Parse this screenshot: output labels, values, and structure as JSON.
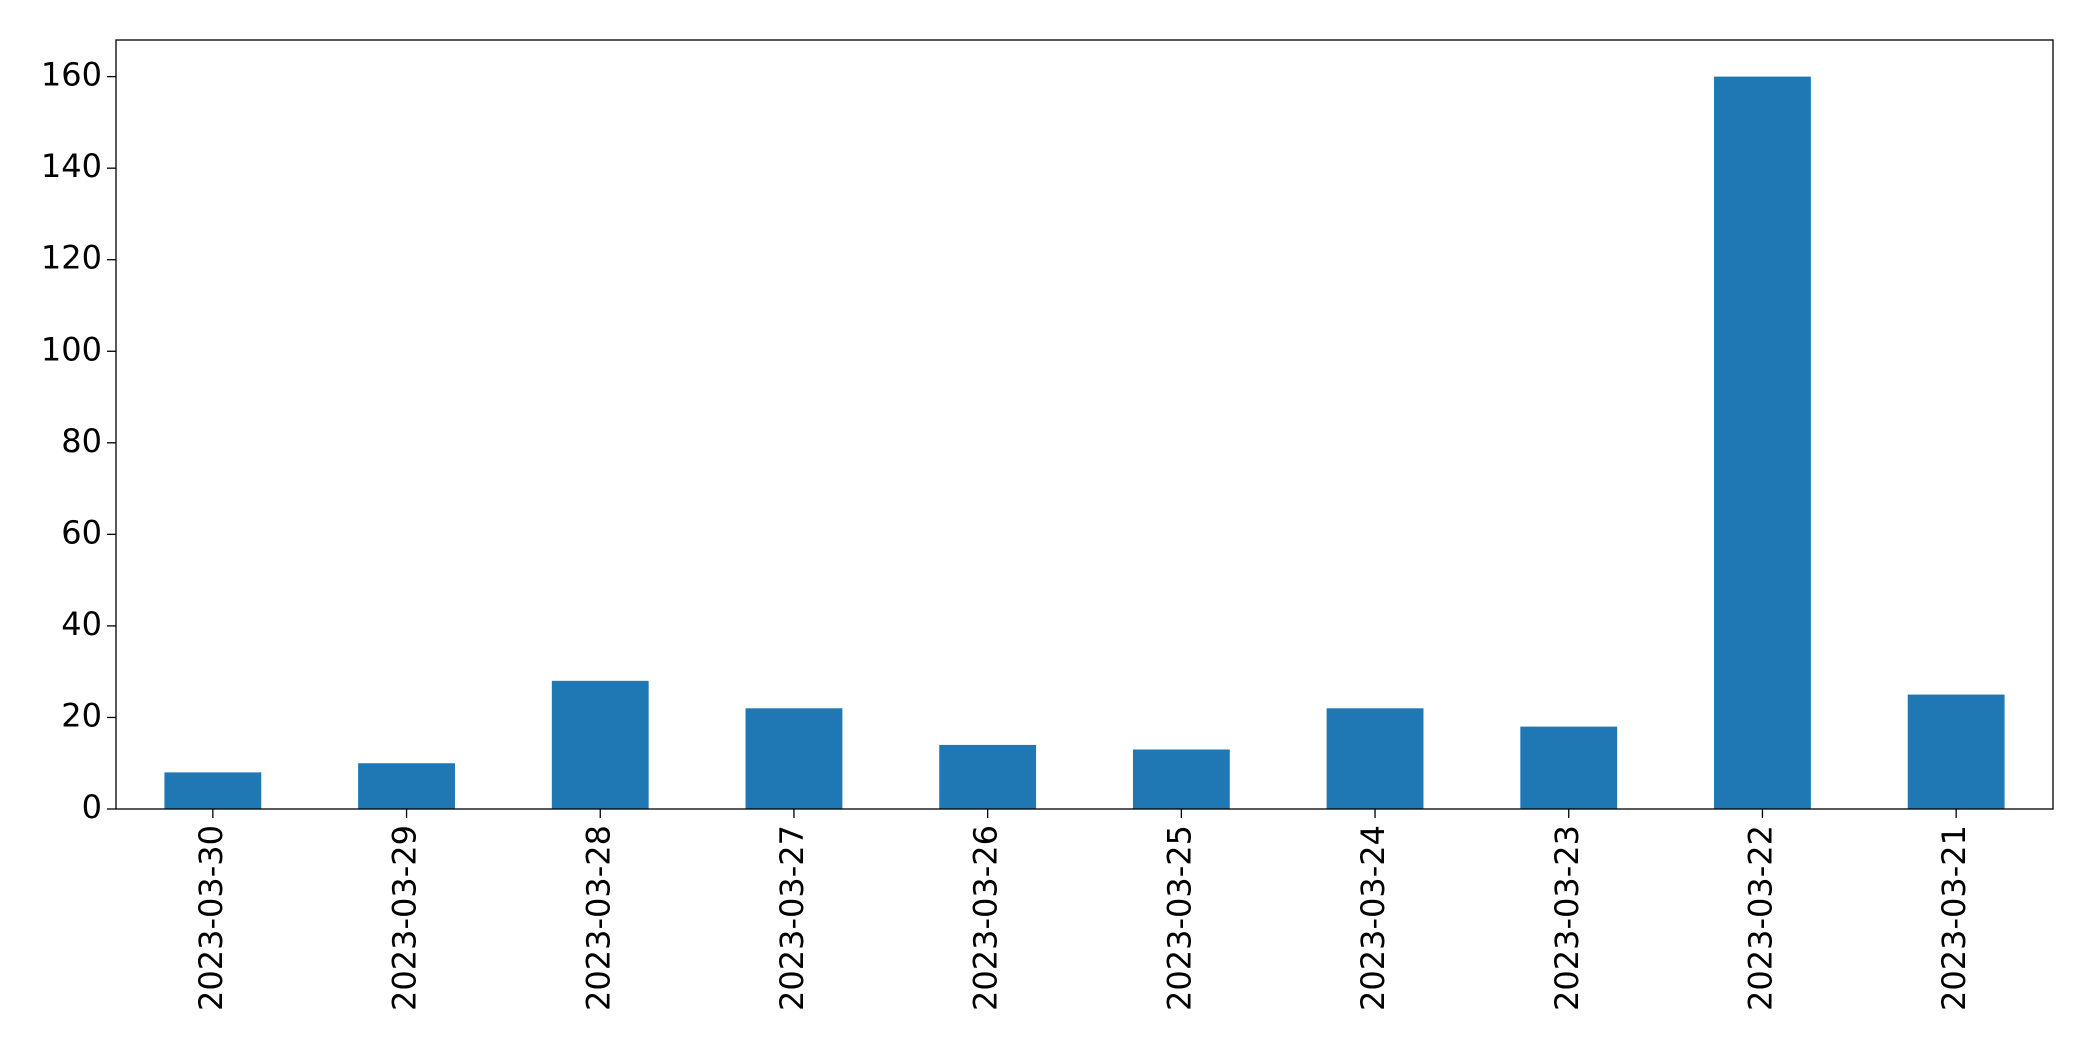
{
  "chart_data": {
    "type": "bar",
    "categories": [
      "2023-03-30",
      "2023-03-29",
      "2023-03-28",
      "2023-03-27",
      "2023-03-26",
      "2023-03-25",
      "2023-03-24",
      "2023-03-23",
      "2023-03-22",
      "2023-03-21"
    ],
    "values": [
      8,
      10,
      28,
      22,
      14,
      13,
      22,
      18,
      160,
      25
    ],
    "color": "#1f77b4",
    "ylim": [
      0,
      168
    ],
    "yticks": [
      0,
      20,
      40,
      60,
      80,
      100,
      120,
      140,
      160
    ],
    "grid": false
  }
}
